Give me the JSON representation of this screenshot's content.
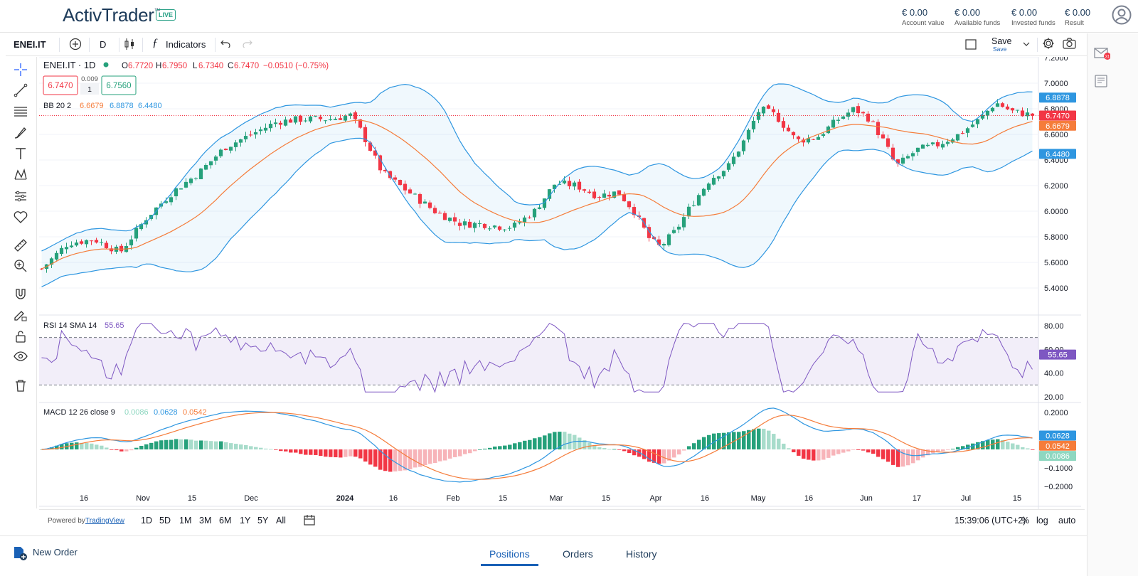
{
  "header": {
    "logo": "ActivTrader",
    "logo_tm": "™",
    "live_badge": "LIVE",
    "stats": [
      {
        "value": "€ 0.00",
        "label": "Account value"
      },
      {
        "value": "€ 0.00",
        "label": "Available funds"
      },
      {
        "value": "€ 0.00",
        "label": "Invested funds"
      },
      {
        "value": "€ 0.00",
        "label": "Result"
      }
    ]
  },
  "toolbar": {
    "symbol": "ENEI.IT",
    "interval": "D",
    "indicators_label": "Indicators",
    "save_label": "Save",
    "save_sub": "Save"
  },
  "legend": {
    "title": "ENEI.IT · 1D",
    "o_label": "O",
    "o": "6.7720",
    "h_label": "H",
    "h": "6.7950",
    "l_label": "L",
    "l": "6.7340",
    "c_label": "C",
    "c": "6.7470",
    "change": "−0.0510 (−0.75%)",
    "bid": "6.7470",
    "spread": "0.009",
    "qty": "1",
    "ask": "6.7560",
    "bb_label": "BB 20 2",
    "bb_mid": "6.6679",
    "bb_up": "6.8878",
    "bb_low": "6.4480"
  },
  "rsi": {
    "label": "RSI 14 SMA 14",
    "value": "55.65"
  },
  "macd": {
    "label": "MACD 12 26 close 9",
    "hist": "0.0086",
    "macd": "0.0628",
    "signal": "0.0542"
  },
  "price_axis": [
    "7.2000",
    "7.0000",
    "6.8000",
    "6.6000",
    "6.4000",
    "6.2000",
    "6.0000",
    "5.8000",
    "5.6000",
    "5.4000"
  ],
  "rsi_axis": [
    "80.00",
    "60.00",
    "40.00",
    "20.00"
  ],
  "macd_axis": [
    "0.2000",
    "0",
    "−0.1000",
    "−0.2000"
  ],
  "time_axis": [
    "16",
    "Nov",
    "15",
    "Dec",
    "2024",
    "16",
    "Feb",
    "15",
    "Mar",
    "15",
    "Apr",
    "16",
    "May",
    "16",
    "Jun",
    "17",
    "Jul",
    "15"
  ],
  "price_badges": {
    "bb_up": "6.8878",
    "last": "6.7470",
    "bb_mid": "6.6679",
    "bb_low": "6.4480"
  },
  "rsi_badges": {
    "rsi": "55.65"
  },
  "macd_badges": {
    "macd": "0.0628",
    "signal": "0.0542",
    "hist": "0.0086"
  },
  "bottom": {
    "powered": "Powered by",
    "tv": "TradingView",
    "ranges": [
      "1D",
      "5D",
      "1M",
      "3M",
      "6M",
      "1Y",
      "5Y",
      "All"
    ],
    "time": "15:39:06 (UTC+2)",
    "pct": "%",
    "log": "log",
    "auto": "auto"
  },
  "footer": {
    "new_order": "New Order",
    "tabs": [
      "Positions",
      "Orders",
      "History"
    ]
  },
  "colors": {
    "up": "#26a17b",
    "down": "#f23645",
    "bb": "#2e96e0",
    "mid": "#f57c3a",
    "rsi": "#7e57c2",
    "accent": "#1a61b6"
  },
  "icons": [
    "plus-circle-icon",
    "candles-icon",
    "fx-icon",
    "undo-icon",
    "redo-icon",
    "square-icon",
    "chevron-down-icon",
    "gear-icon",
    "camera-icon",
    "crosshair-icon",
    "trend-line-icon",
    "horizontal-lines-icon",
    "brush-icon",
    "text-icon",
    "pattern-icon",
    "forecast-icon",
    "heart-icon",
    "ruler-icon",
    "zoom-icon",
    "magnet-icon",
    "pencil-lock-icon",
    "lock-icon",
    "eye-icon",
    "trash-icon",
    "mail-icon",
    "news-icon",
    "avatar-icon",
    "calendar-icon",
    "new-order-icon"
  ],
  "notification_count": "31"
}
